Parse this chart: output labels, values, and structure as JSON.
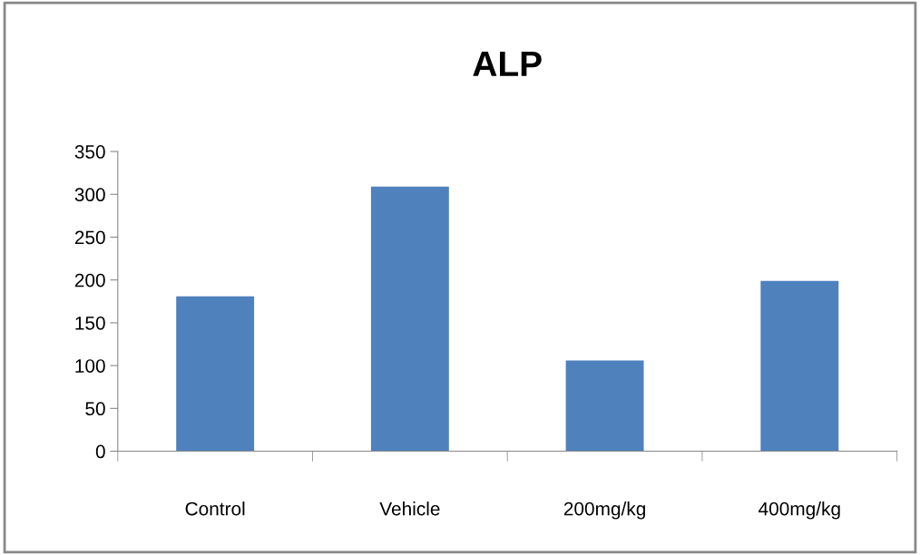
{
  "chart_data": {
    "type": "bar",
    "title": "ALP",
    "categories": [
      "Control",
      "Vehicle",
      "200mg/kg",
      "400mg/kg"
    ],
    "values": [
      181,
      309,
      106,
      199
    ],
    "color": "#4f81bd",
    "ylim": [
      0,
      350
    ],
    "yticks": [
      0,
      50,
      100,
      150,
      200,
      250,
      300,
      350
    ],
    "grid": false,
    "legend": false
  }
}
